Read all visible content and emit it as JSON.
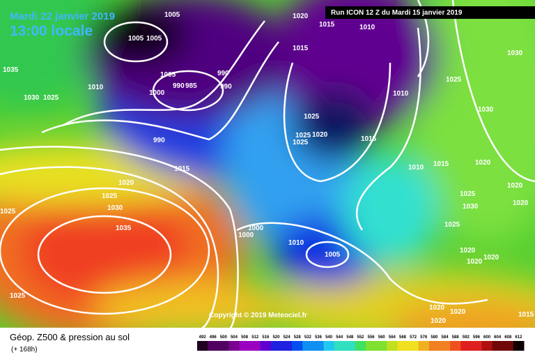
{
  "header": {
    "date": "Mardi 22 janvier 2019",
    "time": "13:00 locale",
    "run": "Run ICON 12 Z du Mardi 15 janvier 2019"
  },
  "copyright": "Copyright © 2019 Meteociel.fr",
  "footer": {
    "title": "Géop. Z500 & pression au sol",
    "subtitle": "(+ 168h)"
  },
  "legend": {
    "labels": [
      "492",
      "496",
      "500",
      "504",
      "508",
      "512",
      "516",
      "520",
      "524",
      "528",
      "532",
      "536",
      "540",
      "544",
      "548",
      "552",
      "556",
      "560",
      "564",
      "568",
      "572",
      "576",
      "580",
      "584",
      "588",
      "592",
      "596",
      "600",
      "604",
      "608",
      "612"
    ]
  },
  "isobar_labels": [
    "1005",
    "1005",
    "1005",
    "1020",
    "1015",
    "1010",
    "1035",
    "1010",
    "1005",
    "1000",
    "990",
    "985",
    "990",
    "990",
    "1015",
    "1025",
    "1030",
    "1030",
    "1025",
    "1010",
    "1030",
    "1025",
    "1020",
    "1025",
    "1025",
    "1015",
    "990",
    "1015",
    "1010",
    "1015",
    "1020",
    "1020",
    "1020",
    "1025",
    "1025",
    "1030",
    "1025",
    "1030",
    "1020",
    "1025",
    "1000",
    "1000",
    "1010",
    "1005",
    "1035",
    "1020",
    "1020",
    "1020",
    "1025",
    "1020",
    "1020",
    "1020",
    "1015"
  ]
}
